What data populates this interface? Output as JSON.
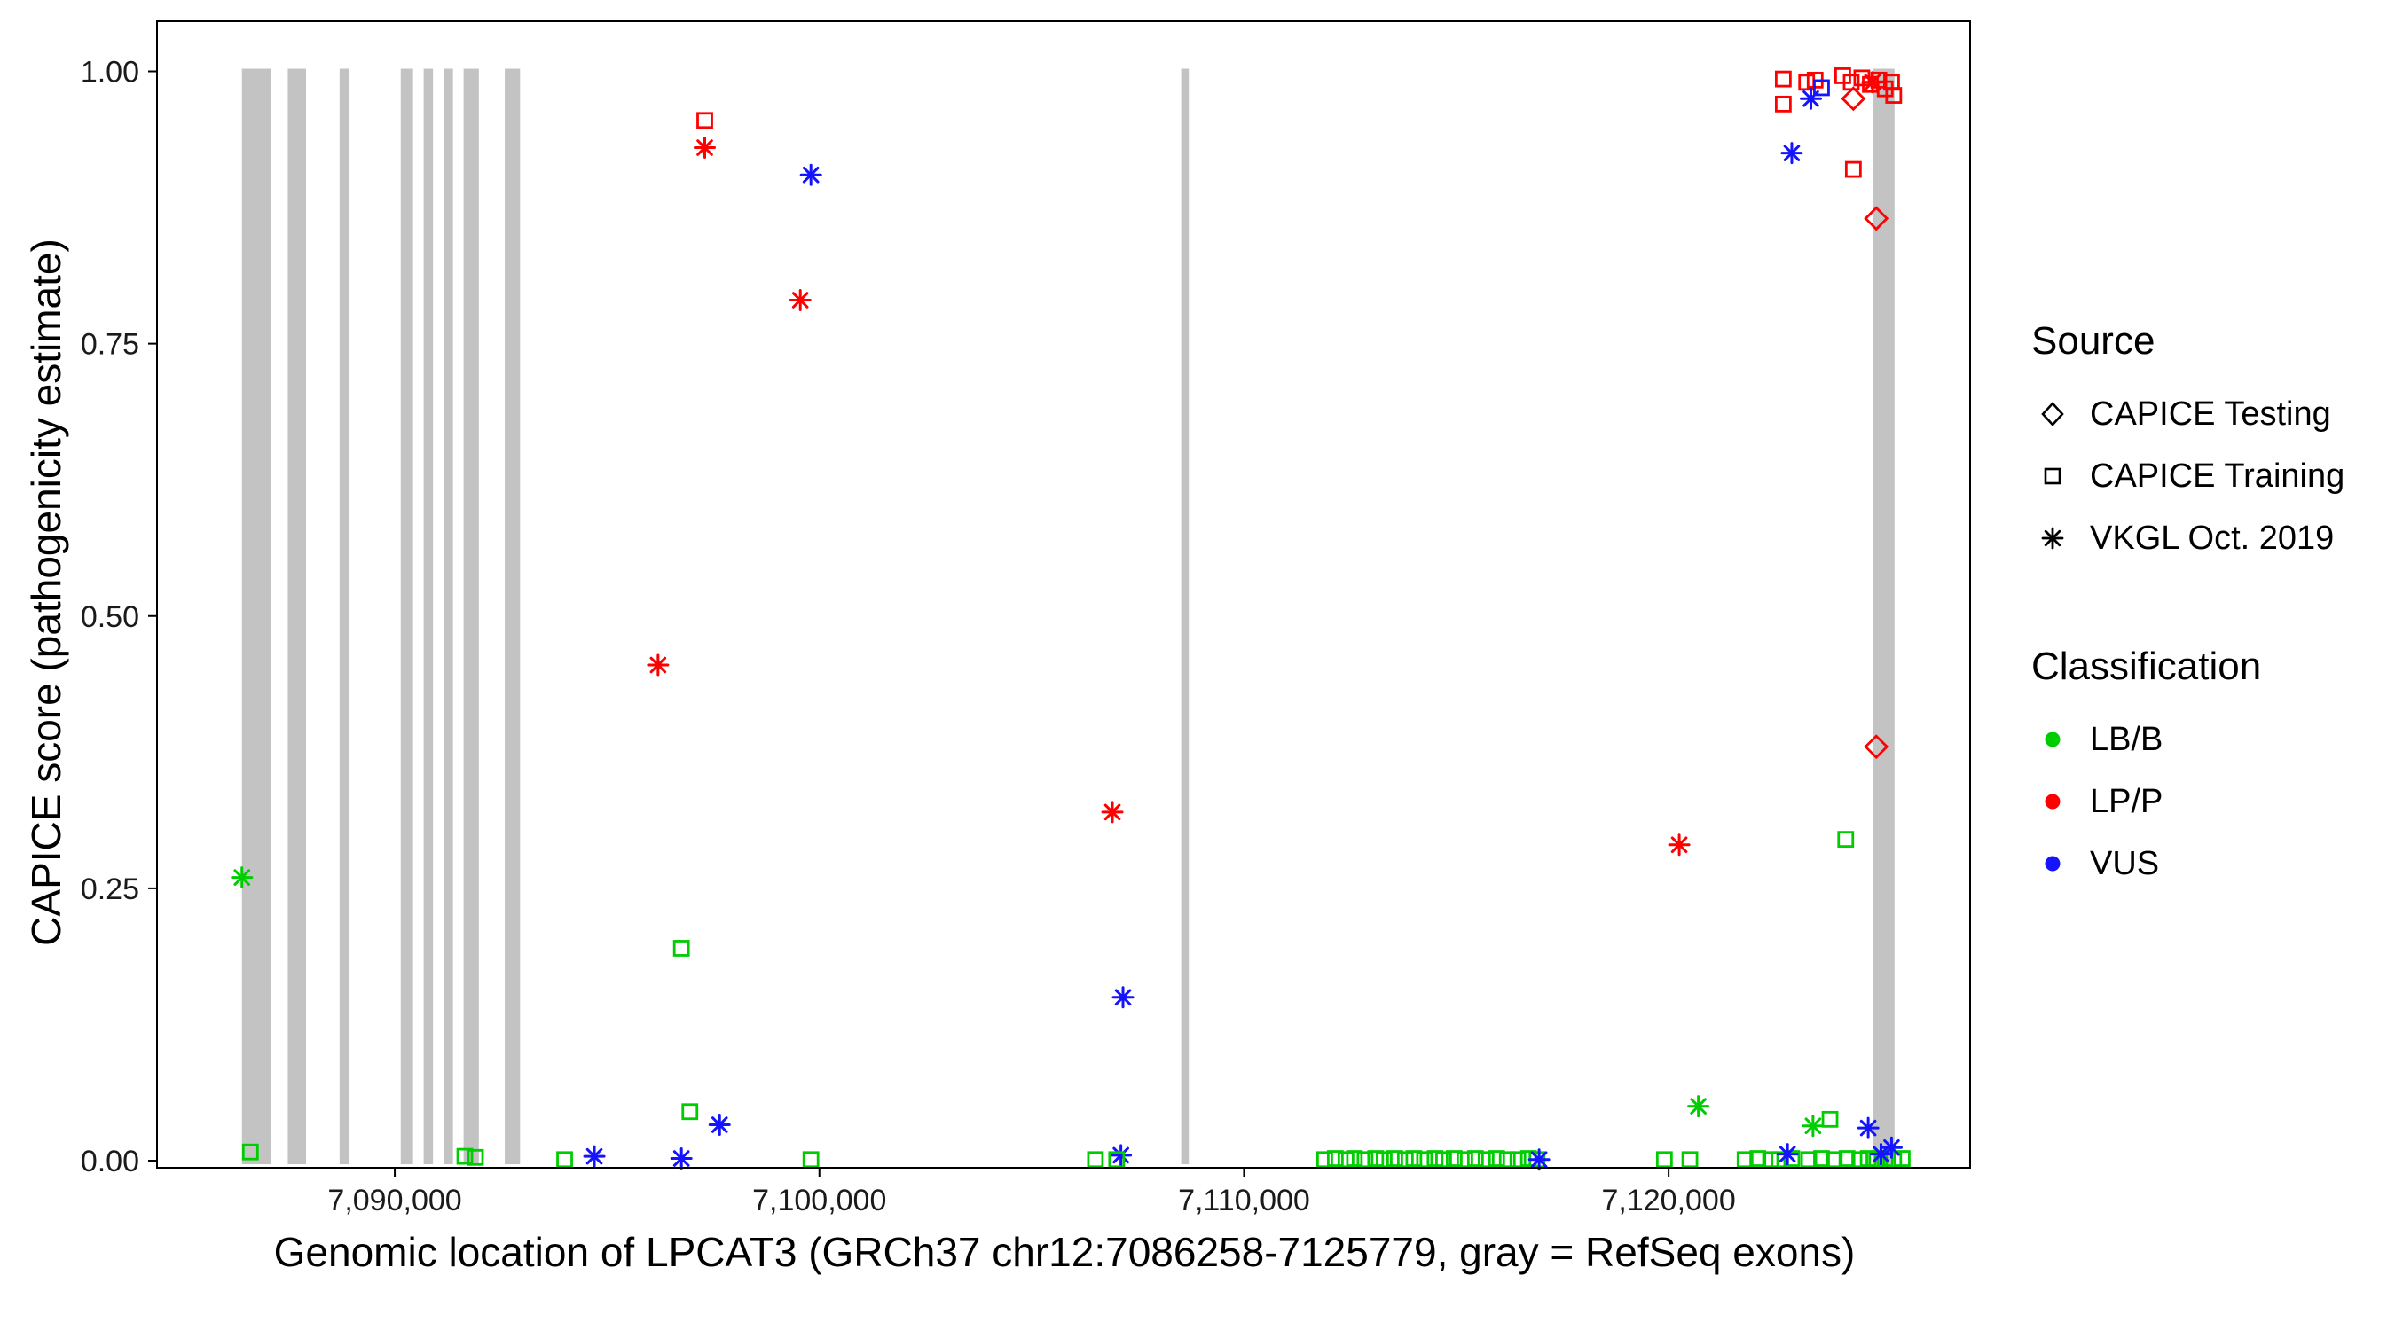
{
  "chart_data": {
    "type": "scatter",
    "title": "",
    "xlabel": "Genomic location of LPCAT3 (GRCh37 chr12:7086258-7125779, gray = RefSeq exons)",
    "ylabel": "CAPICE score (pathogenicity estimate)",
    "xlim": [
      7084400,
      7127100
    ],
    "ylim": [
      -0.0065,
      1.046
    ],
    "x_ticks": [
      {
        "v": 7090000,
        "label": "7,090,000"
      },
      {
        "v": 7100000,
        "label": "7,100,000"
      },
      {
        "v": 7110000,
        "label": "7,110,000"
      },
      {
        "v": 7120000,
        "label": "7,120,000"
      }
    ],
    "y_ticks": [
      {
        "v": 0.0,
        "label": "0.00"
      },
      {
        "v": 0.25,
        "label": "0.25"
      },
      {
        "v": 0.5,
        "label": "0.50"
      },
      {
        "v": 0.75,
        "label": "0.75"
      },
      {
        "v": 1.0,
        "label": "1.00"
      }
    ],
    "exon_color": "#C3C3C3",
    "exons": [
      [
        7086400,
        7087090
      ],
      [
        7087480,
        7087910
      ],
      [
        7088700,
        7088920
      ],
      [
        7090140,
        7090430
      ],
      [
        7090680,
        7090900
      ],
      [
        7091150,
        7091370
      ],
      [
        7091620,
        7091980
      ],
      [
        7092590,
        7092950
      ],
      [
        7108520,
        7108700
      ],
      [
        7124820,
        7125320
      ]
    ],
    "classification_colors": {
      "LB/B": "#00CD00",
      "LP/P": "#FF0000",
      "VUS": "#1414FF"
    },
    "shape_codes": {
      "sq": "square (CAPICE Training)",
      "di": "diamond (CAPICE Testing)",
      "as": "asterisk (VKGL Oct. 2019)"
    },
    "point_format": [
      "x_genomic",
      "capice_score",
      "shape",
      "classification"
    ],
    "points": [
      [
        7086400,
        0.26,
        "as",
        "LB/B"
      ],
      [
        7086600,
        0.008,
        "sq",
        "LB/B"
      ],
      [
        7091650,
        0.004,
        "sq",
        "LB/B"
      ],
      [
        7091900,
        0.003,
        "sq",
        "LB/B"
      ],
      [
        7094000,
        0.001,
        "sq",
        "LB/B"
      ],
      [
        7094700,
        0.004,
        "as",
        "VUS"
      ],
      [
        7096200,
        0.455,
        "as",
        "LP/P"
      ],
      [
        7096750,
        0.195,
        "sq",
        "LB/B"
      ],
      [
        7096950,
        0.045,
        "sq",
        "LB/B"
      ],
      [
        7096750,
        0.002,
        "as",
        "VUS"
      ],
      [
        7097650,
        0.033,
        "as",
        "VUS"
      ],
      [
        7097300,
        0.955,
        "sq",
        "LP/P"
      ],
      [
        7097300,
        0.93,
        "as",
        "LP/P"
      ],
      [
        7099800,
        0.905,
        "as",
        "VUS"
      ],
      [
        7099550,
        0.79,
        "as",
        "LP/P"
      ],
      [
        7099800,
        0.001,
        "sq",
        "LB/B"
      ],
      [
        7106500,
        0.001,
        "sq",
        "LB/B"
      ],
      [
        7106900,
        0.32,
        "as",
        "LP/P"
      ],
      [
        7107150,
        0.15,
        "as",
        "VUS"
      ],
      [
        7107100,
        0.005,
        "as",
        "VUS"
      ],
      [
        7107000,
        0.001,
        "sq",
        "LB/B"
      ],
      [
        7111900,
        0.001,
        "sq",
        "LB/B"
      ],
      [
        7112150,
        0.002,
        "sq",
        "LB/B"
      ],
      [
        7112400,
        0.001,
        "sq",
        "LB/B"
      ],
      [
        7112600,
        0.002,
        "sq",
        "LB/B"
      ],
      [
        7112850,
        0.001,
        "sq",
        "LB/B"
      ],
      [
        7113100,
        0.002,
        "sq",
        "LB/B"
      ],
      [
        7113300,
        0.001,
        "sq",
        "LB/B"
      ],
      [
        7113550,
        0.002,
        "sq",
        "LB/B"
      ],
      [
        7113800,
        0.001,
        "sq",
        "LB/B"
      ],
      [
        7114000,
        0.002,
        "sq",
        "LB/B"
      ],
      [
        7114250,
        0.001,
        "sq",
        "LB/B"
      ],
      [
        7114500,
        0.002,
        "sq",
        "LB/B"
      ],
      [
        7114700,
        0.001,
        "sq",
        "LB/B"
      ],
      [
        7114950,
        0.002,
        "sq",
        "LB/B"
      ],
      [
        7115200,
        0.001,
        "sq",
        "LB/B"
      ],
      [
        7115450,
        0.002,
        "sq",
        "LB/B"
      ],
      [
        7115700,
        0.001,
        "sq",
        "LB/B"
      ],
      [
        7115950,
        0.002,
        "sq",
        "LB/B"
      ],
      [
        7116200,
        0.001,
        "sq",
        "LB/B"
      ],
      [
        7116450,
        0.001,
        "sq",
        "LB/B"
      ],
      [
        7116700,
        0.002,
        "sq",
        "LB/B"
      ],
      [
        7116900,
        0.001,
        "sq",
        "LB/B"
      ],
      [
        7116950,
        0.001,
        "as",
        "VUS"
      ],
      [
        7119900,
        0.001,
        "sq",
        "LB/B"
      ],
      [
        7120500,
        0.001,
        "sq",
        "LB/B"
      ],
      [
        7120250,
        0.29,
        "as",
        "LP/P"
      ],
      [
        7120700,
        0.05,
        "as",
        "LB/B"
      ],
      [
        7121800,
        0.001,
        "sq",
        "LB/B"
      ],
      [
        7122100,
        0.002,
        "sq",
        "LB/B"
      ],
      [
        7122400,
        0.001,
        "sq",
        "LB/B"
      ],
      [
        7122600,
        0.001,
        "sq",
        "LB/B"
      ],
      [
        7122900,
        0.002,
        "sq",
        "LB/B"
      ],
      [
        7123300,
        0.001,
        "sq",
        "LB/B"
      ],
      [
        7123600,
        0.002,
        "sq",
        "LB/B"
      ],
      [
        7123900,
        0.001,
        "sq",
        "LB/B"
      ],
      [
        7124200,
        0.002,
        "sq",
        "LB/B"
      ],
      [
        7124500,
        0.001,
        "sq",
        "LB/B"
      ],
      [
        7124700,
        0.002,
        "sq",
        "LB/B"
      ],
      [
        7124900,
        0.001,
        "sq",
        "LB/B"
      ],
      [
        7125100,
        0.002,
        "sq",
        "LB/B"
      ],
      [
        7125300,
        0.001,
        "sq",
        "LB/B"
      ],
      [
        7125500,
        0.002,
        "sq",
        "LB/B"
      ],
      [
        7123800,
        0.038,
        "sq",
        "LB/B"
      ],
      [
        7123400,
        0.032,
        "as",
        "LB/B"
      ],
      [
        7122800,
        0.006,
        "as",
        "VUS"
      ],
      [
        7124700,
        0.03,
        "as",
        "VUS"
      ],
      [
        7125000,
        0.006,
        "as",
        "VUS"
      ],
      [
        7125250,
        0.012,
        "as",
        "VUS"
      ],
      [
        7122700,
        0.993,
        "sq",
        "LP/P"
      ],
      [
        7122700,
        0.97,
        "sq",
        "LP/P"
      ],
      [
        7123250,
        0.99,
        "sq",
        "LP/P"
      ],
      [
        7123450,
        0.992,
        "sq",
        "LP/P"
      ],
      [
        7124100,
        0.996,
        "sq",
        "LP/P"
      ],
      [
        7124300,
        0.99,
        "sq",
        "LP/P"
      ],
      [
        7124550,
        0.994,
        "sq",
        "LP/P"
      ],
      [
        7124750,
        0.988,
        "sq",
        "LP/P"
      ],
      [
        7124950,
        0.992,
        "sq",
        "LP/P"
      ],
      [
        7125100,
        0.984,
        "sq",
        "LP/P"
      ],
      [
        7125250,
        0.99,
        "sq",
        "LP/P"
      ],
      [
        7125300,
        0.978,
        "sq",
        "LP/P"
      ],
      [
        7124350,
        0.91,
        "sq",
        "LP/P"
      ],
      [
        7124800,
        0.99,
        "as",
        "LP/P"
      ],
      [
        7122900,
        0.925,
        "as",
        "VUS"
      ],
      [
        7123350,
        0.975,
        "as",
        "VUS"
      ],
      [
        7123600,
        0.985,
        "sq",
        "VUS"
      ],
      [
        7124350,
        0.975,
        "di",
        "LP/P"
      ],
      [
        7124890,
        0.865,
        "di",
        "LP/P"
      ],
      [
        7124890,
        0.38,
        "di",
        "LP/P"
      ],
      [
        7124170,
        0.295,
        "sq",
        "LB/B"
      ]
    ]
  },
  "legend": {
    "source": {
      "title": "Source",
      "items": [
        {
          "shape": "diamond",
          "label": "CAPICE Testing"
        },
        {
          "shape": "square",
          "label": "CAPICE Training"
        },
        {
          "shape": "asterisk",
          "label": "VKGL Oct. 2019"
        }
      ]
    },
    "classification": {
      "title": "Classification",
      "items": [
        {
          "color": "#00CD00",
          "label": "LB/B"
        },
        {
          "color": "#FF0000",
          "label": "LP/P"
        },
        {
          "color": "#1414FF",
          "label": "VUS"
        }
      ]
    }
  }
}
